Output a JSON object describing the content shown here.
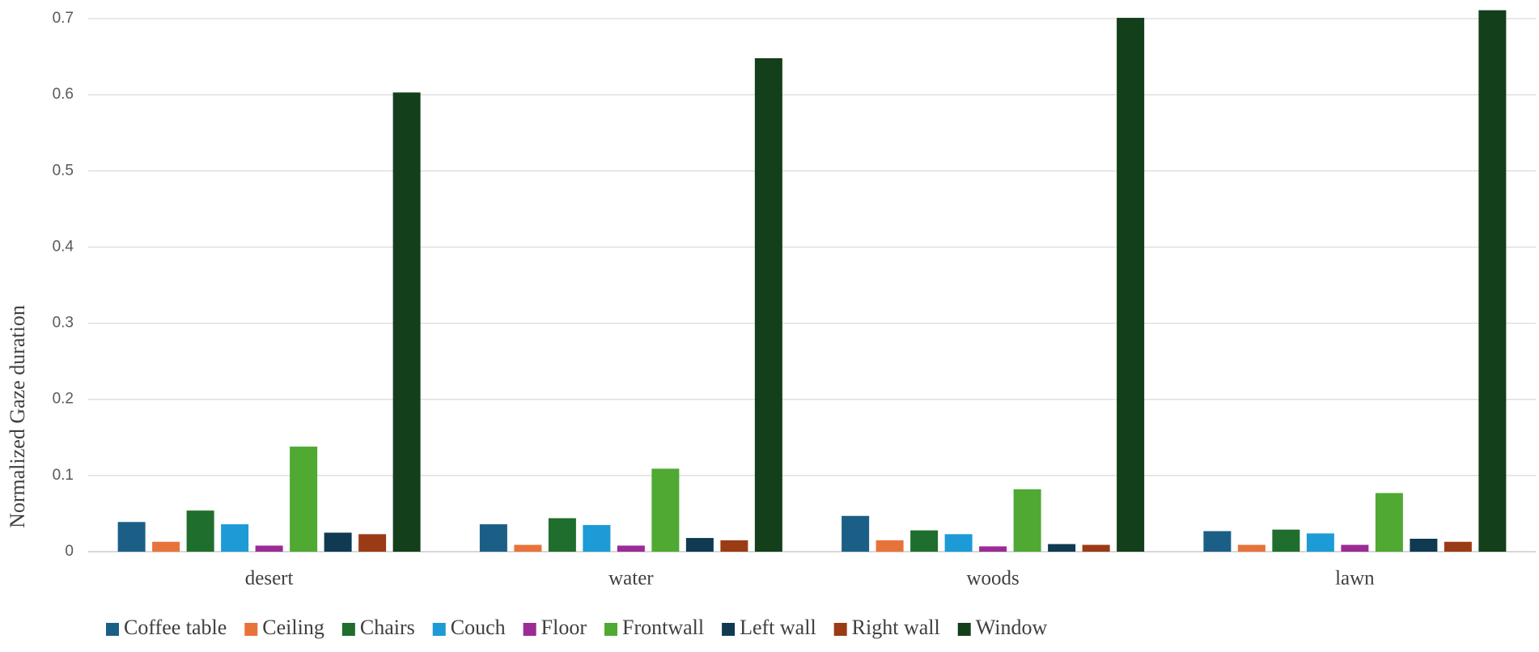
{
  "chart_data": {
    "type": "bar",
    "y_label": "Normalized Gaze duration",
    "categories": [
      "desert",
      "water",
      "woods",
      "lawn"
    ],
    "series": [
      {
        "name": "Coffee table",
        "color": "#1b5f87",
        "values": [
          0.039,
          0.036,
          0.047,
          0.027
        ]
      },
      {
        "name": "Ceiling",
        "color": "#e8733a",
        "values": [
          0.013,
          0.009,
          0.015,
          0.009
        ]
      },
      {
        "name": "Chairs",
        "color": "#1f6e2d",
        "values": [
          0.054,
          0.044,
          0.028,
          0.029
        ]
      },
      {
        "name": "Couch",
        "color": "#1c9bd6",
        "values": [
          0.036,
          0.035,
          0.023,
          0.024
        ]
      },
      {
        "name": "Floor",
        "color": "#9c2b95",
        "values": [
          0.008,
          0.008,
          0.007,
          0.009
        ]
      },
      {
        "name": "Frontwall",
        "color": "#4fa933",
        "values": [
          0.138,
          0.109,
          0.082,
          0.077
        ]
      },
      {
        "name": "Left wall",
        "color": "#0f3a52",
        "values": [
          0.025,
          0.018,
          0.01,
          0.017
        ]
      },
      {
        "name": "Right wall",
        "color": "#9b3b15",
        "values": [
          0.023,
          0.015,
          0.009,
          0.013
        ]
      },
      {
        "name": "Window",
        "color": "#133f1b",
        "values": [
          0.603,
          0.648,
          0.701,
          0.711
        ]
      }
    ],
    "ylim": [
      0,
      0.7
    ],
    "yticks": [
      0,
      0.1,
      0.2,
      0.3,
      0.4,
      0.5,
      0.6,
      0.7
    ],
    "grid": true,
    "legend": "bottom"
  }
}
